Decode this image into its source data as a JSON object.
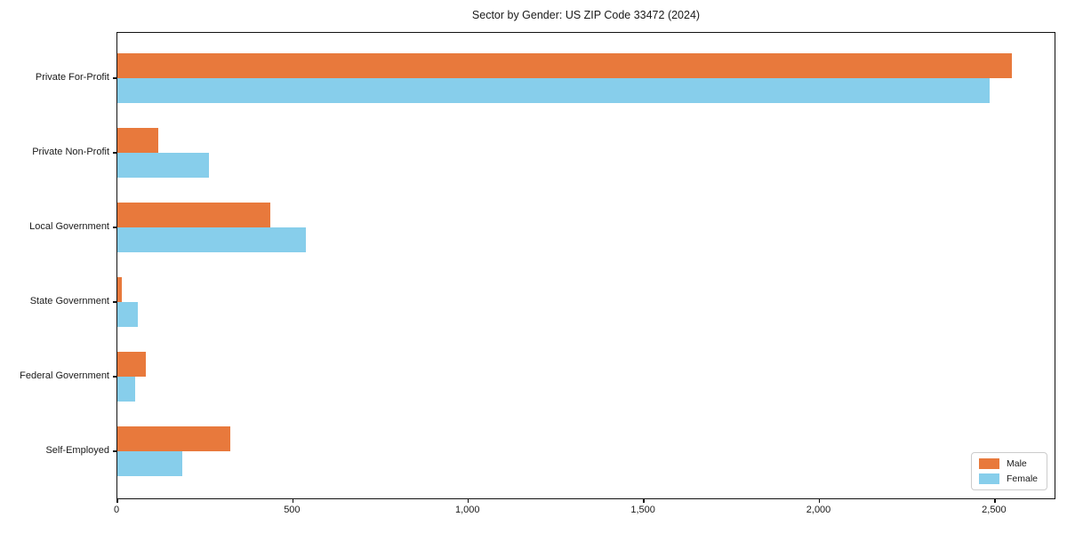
{
  "chart_data": {
    "type": "bar",
    "orientation": "horizontal",
    "title": "Sector by Gender: US ZIP Code 33472 (2024)",
    "categories": [
      "Private For-Profit",
      "Private Non-Profit",
      "Local Government",
      "State Government",
      "Federal Government",
      "Self-Employed"
    ],
    "series": [
      {
        "name": "Male",
        "color": "#e8793c",
        "values": [
          2548,
          116,
          435,
          13,
          80,
          322
        ]
      },
      {
        "name": "Female",
        "color": "#87ceeb",
        "values": [
          2485,
          261,
          537,
          57,
          51,
          185
        ]
      }
    ],
    "xlim": [
      0,
      2675
    ],
    "xticks": [
      0,
      500,
      1000,
      1500,
      2000,
      2500
    ],
    "xtick_labels": [
      "0",
      "500",
      "1,000",
      "1,500",
      "2,000",
      "2,500"
    ],
    "xlabel": "",
    "ylabel": "",
    "grid": false,
    "legend_position": "lower right"
  }
}
